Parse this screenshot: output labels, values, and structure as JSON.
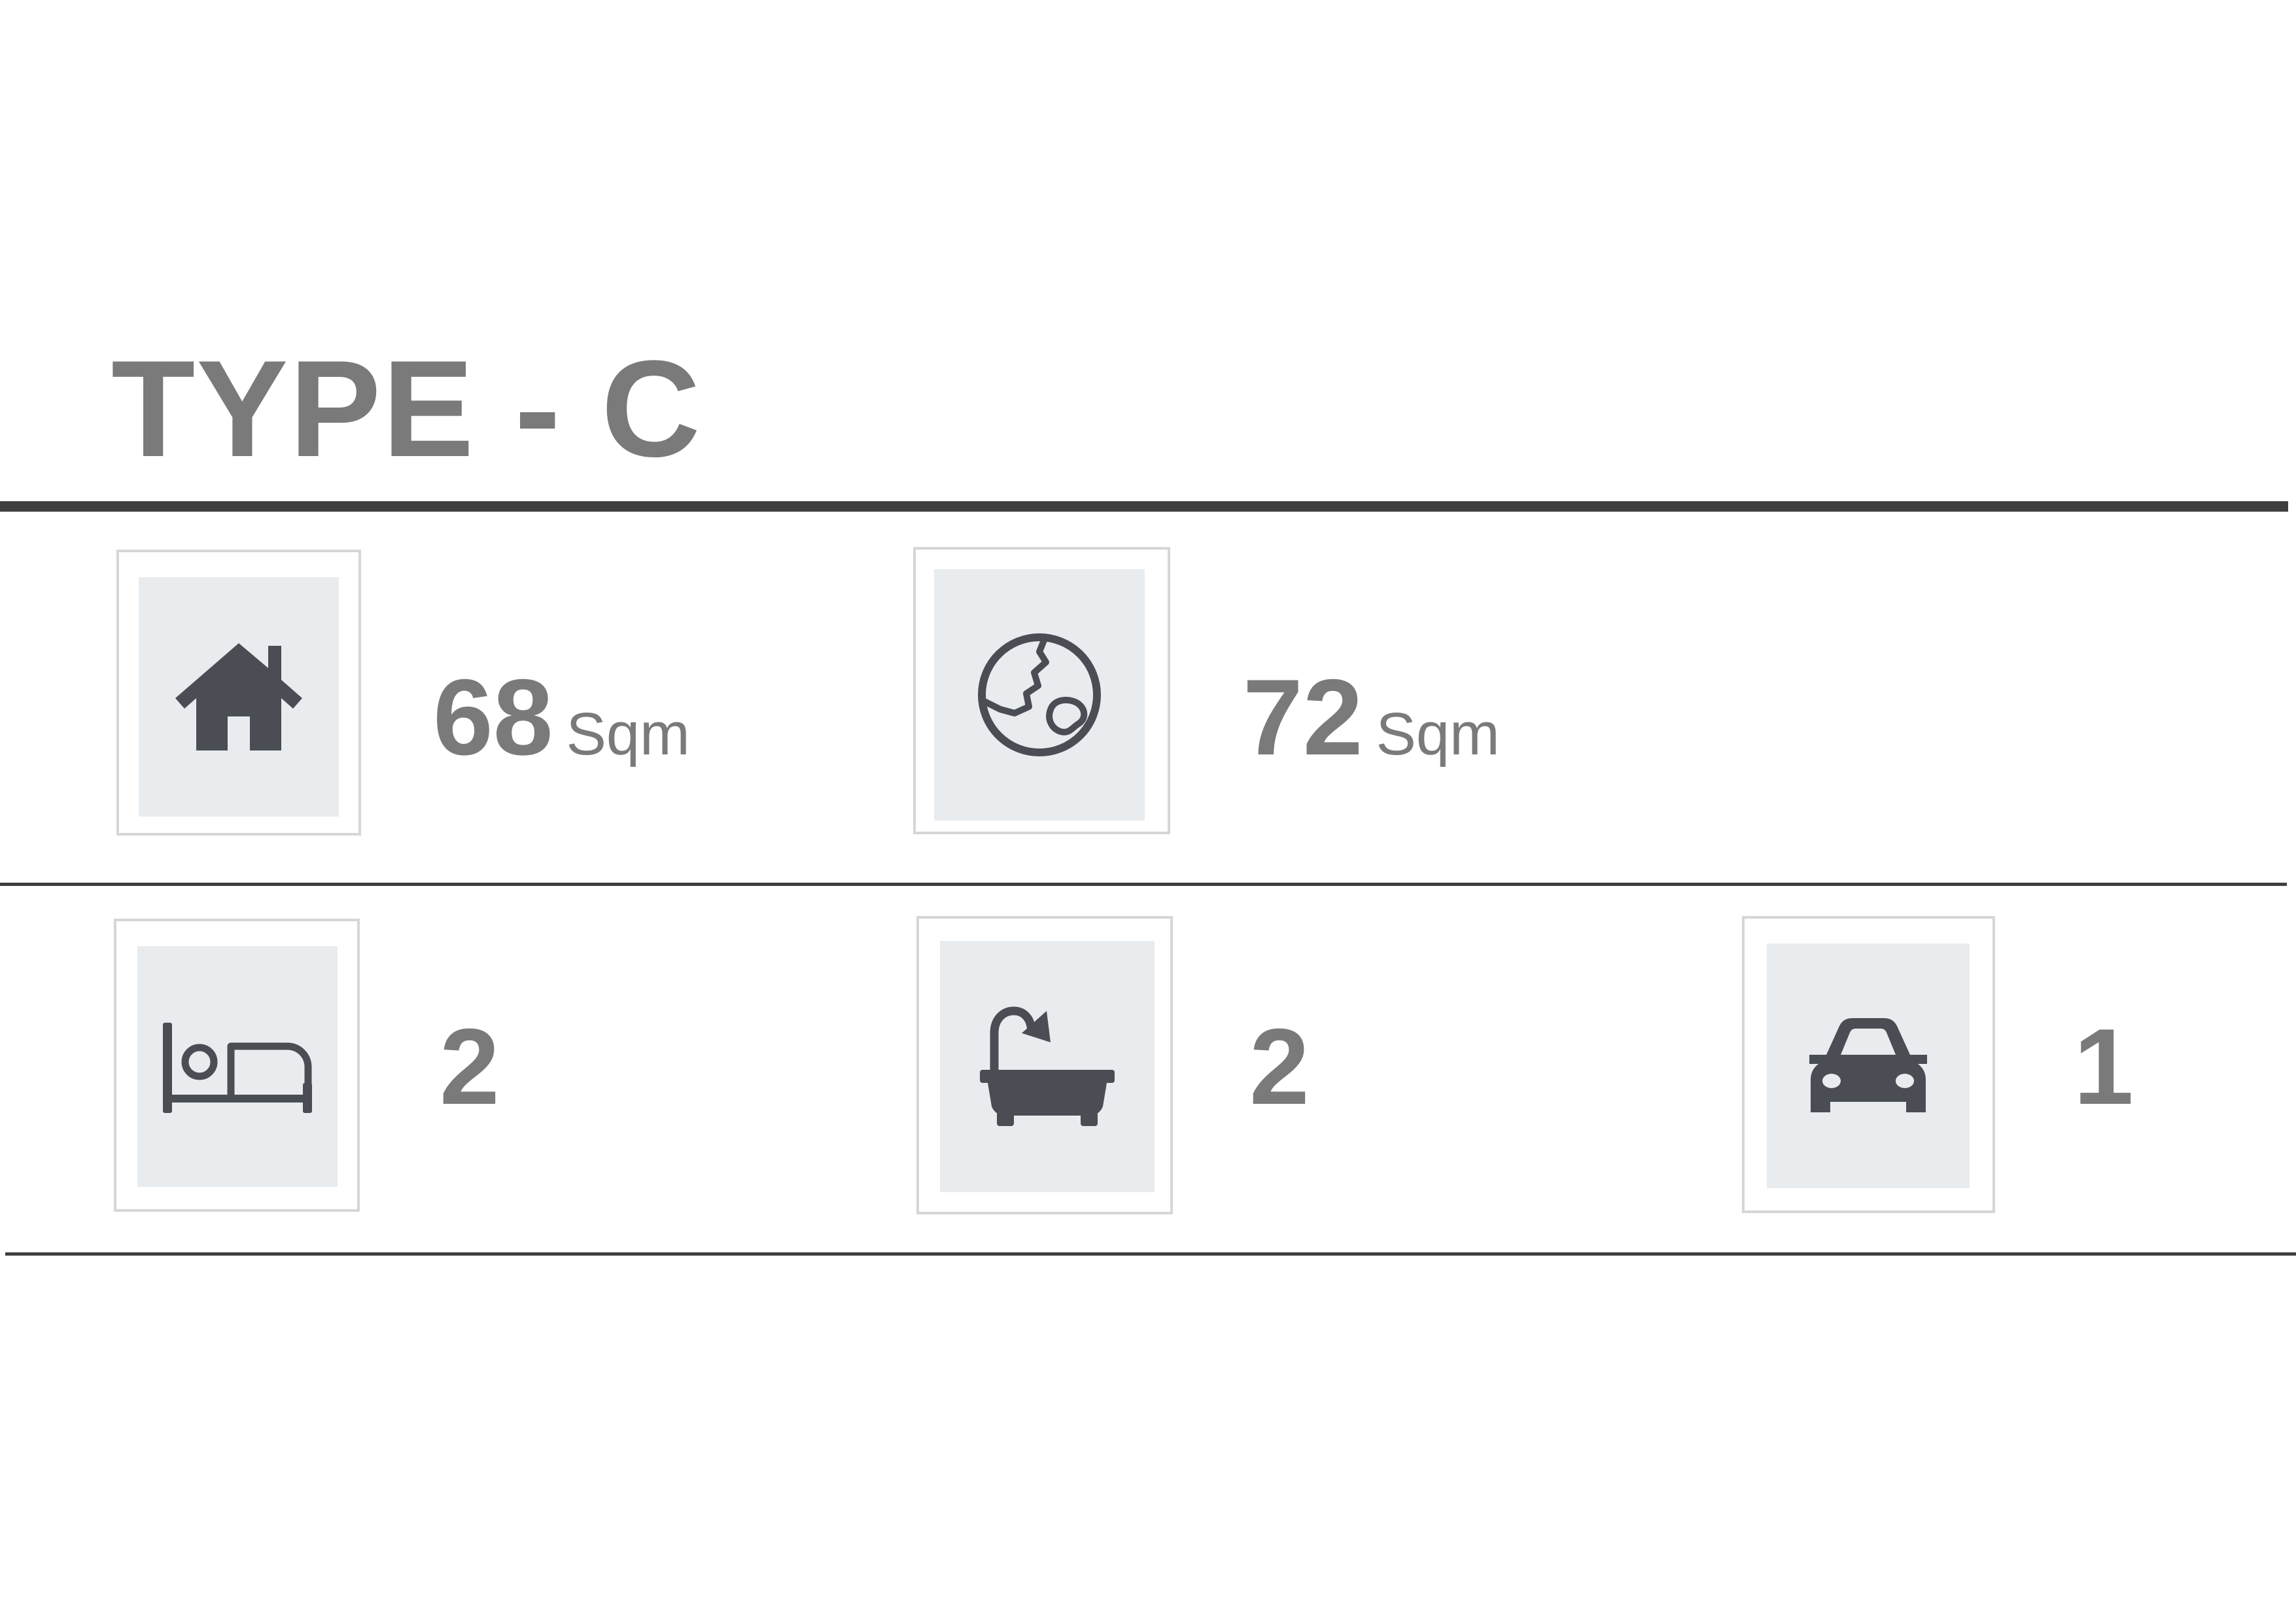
{
  "title": "TYPE - C",
  "specs": {
    "building_area": {
      "icon": "house-icon",
      "value": "68",
      "unit": "Sqm"
    },
    "land_area": {
      "icon": "globe-icon",
      "value": "72",
      "unit": "Sqm"
    },
    "bedrooms": {
      "icon": "bed-icon",
      "value": "2"
    },
    "bathrooms": {
      "icon": "bathtub-icon",
      "value": "2"
    },
    "parking": {
      "icon": "car-icon",
      "value": "1"
    }
  },
  "colors": {
    "text": "#7a7a7a",
    "icon": "#4a4e54",
    "icon_bg": "#e9ecef",
    "rule": "#3f3f3f"
  }
}
